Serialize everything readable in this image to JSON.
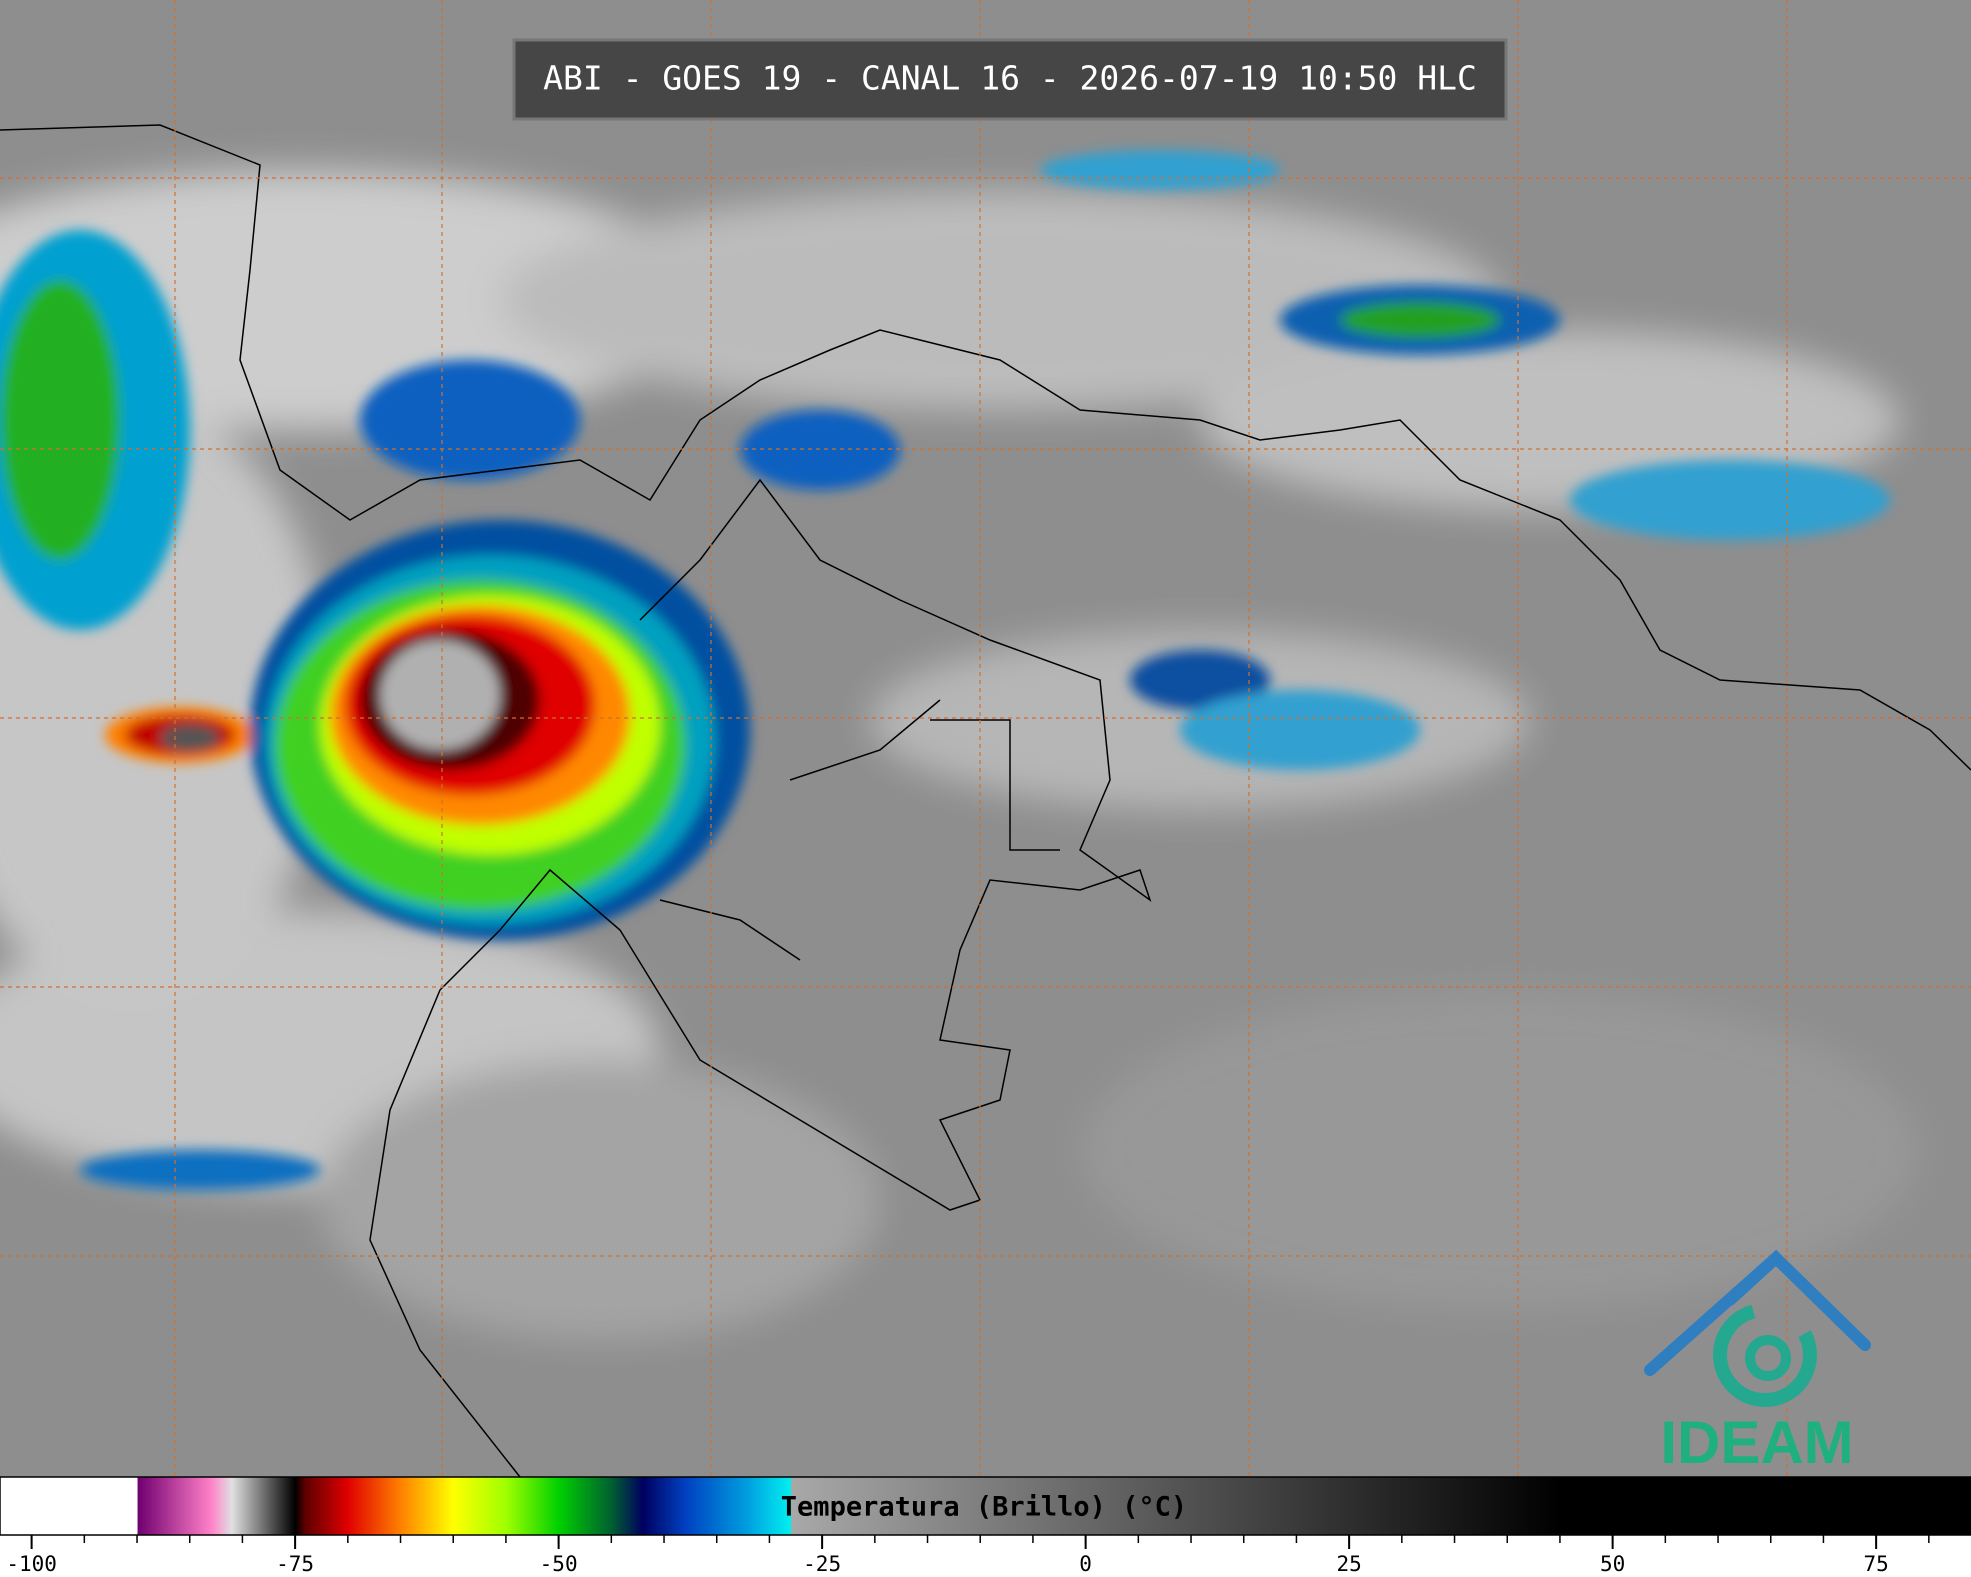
{
  "header": {
    "title": "ABI - GOES 19 - CANAL 16 - 2026-07-19 10:50 HLC"
  },
  "colorbar": {
    "label": "Temperatura (Brillo) (°C)",
    "xlim": [
      -103,
      84
    ],
    "xticks": [
      -100,
      -75,
      -50,
      -25,
      0,
      25,
      50,
      75
    ],
    "colormap": [
      {
        "value": -103,
        "color": "#ffffff"
      },
      {
        "value": -90,
        "color": "#ffffff"
      },
      {
        "value": -89.9,
        "color": "#700070"
      },
      {
        "value": -83,
        "color": "#ff80c8"
      },
      {
        "value": -81,
        "color": "#e0e0e0"
      },
      {
        "value": -75,
        "color": "#000000"
      },
      {
        "value": -74,
        "color": "#600000"
      },
      {
        "value": -70,
        "color": "#e00000"
      },
      {
        "value": -65,
        "color": "#ff8000"
      },
      {
        "value": -60,
        "color": "#ffff00"
      },
      {
        "value": -55,
        "color": "#a0ff00"
      },
      {
        "value": -50,
        "color": "#00d000"
      },
      {
        "value": -45,
        "color": "#006030"
      },
      {
        "value": -42,
        "color": "#000060"
      },
      {
        "value": -38,
        "color": "#0040c0"
      },
      {
        "value": -32,
        "color": "#00a0e0"
      },
      {
        "value": -28,
        "color": "#00f0f0"
      },
      {
        "value": -27.9,
        "color": "#a8a8a8"
      },
      {
        "value": 45,
        "color": "#000000"
      },
      {
        "value": 84,
        "color": "#000000"
      }
    ]
  },
  "logo": {
    "text": "IDEAM"
  }
}
